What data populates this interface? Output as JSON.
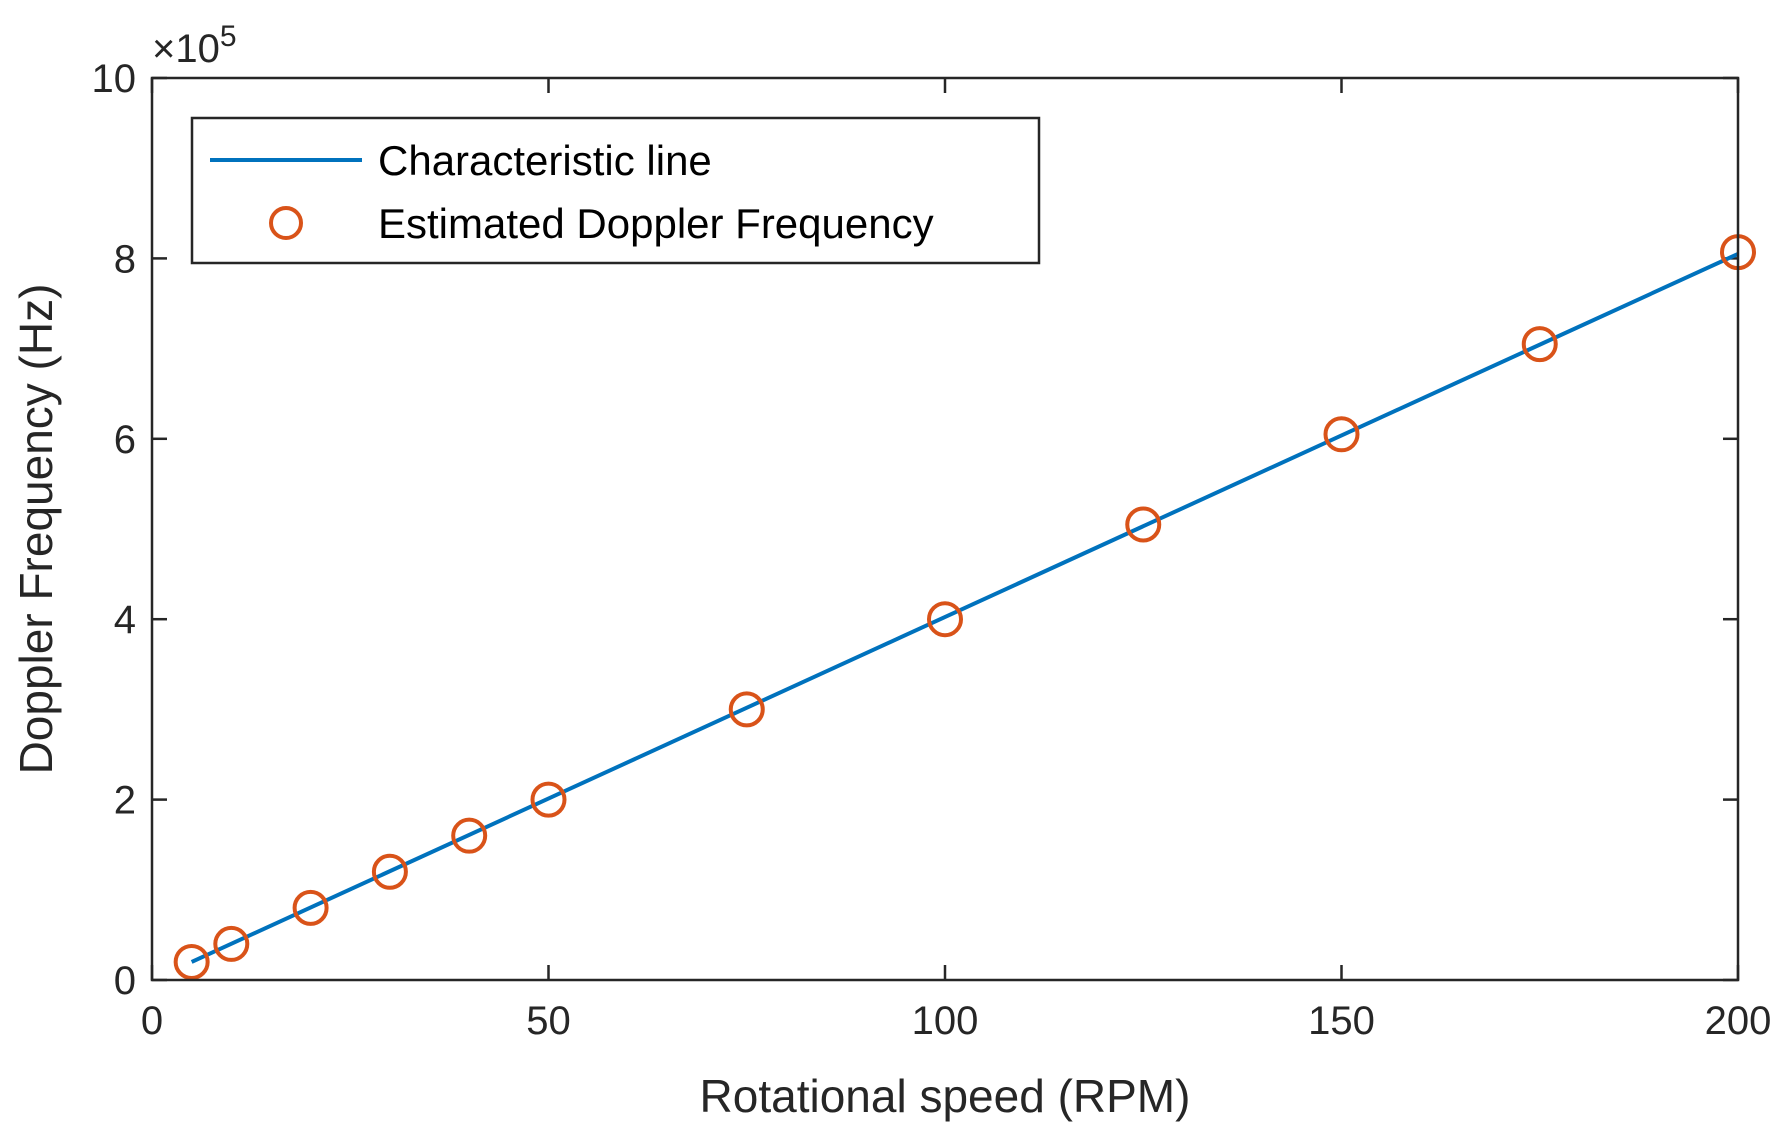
{
  "chart_data": {
    "type": "line",
    "xlabel": "Rotational speed (RPM)",
    "ylabel": "Doppler Frequency (Hz)",
    "xlim": [
      0,
      200
    ],
    "ylim": [
      0,
      10
    ],
    "xticks": [
      0,
      50,
      100,
      150,
      200
    ],
    "yticks": [
      0,
      2,
      4,
      6,
      8,
      10
    ],
    "y_multiplier": "×10",
    "y_multiplier_exponent": "5",
    "grid": false,
    "legend_position": "top-left",
    "series": [
      {
        "name": "Characteristic line",
        "style": "line",
        "color": "#0072BD",
        "x": [
          5,
          200
        ],
        "y": [
          0.2,
          8.05
        ]
      },
      {
        "name": "Estimated Doppler Frequency",
        "style": "marker-circle",
        "color": "#D95319",
        "x": [
          5,
          10,
          20,
          30,
          40,
          50,
          75,
          100,
          125,
          150,
          175,
          200
        ],
        "y": [
          0.2,
          0.4,
          0.8,
          1.2,
          1.6,
          2.0,
          3.0,
          4.0,
          5.05,
          6.05,
          7.05,
          8.07
        ]
      }
    ]
  }
}
